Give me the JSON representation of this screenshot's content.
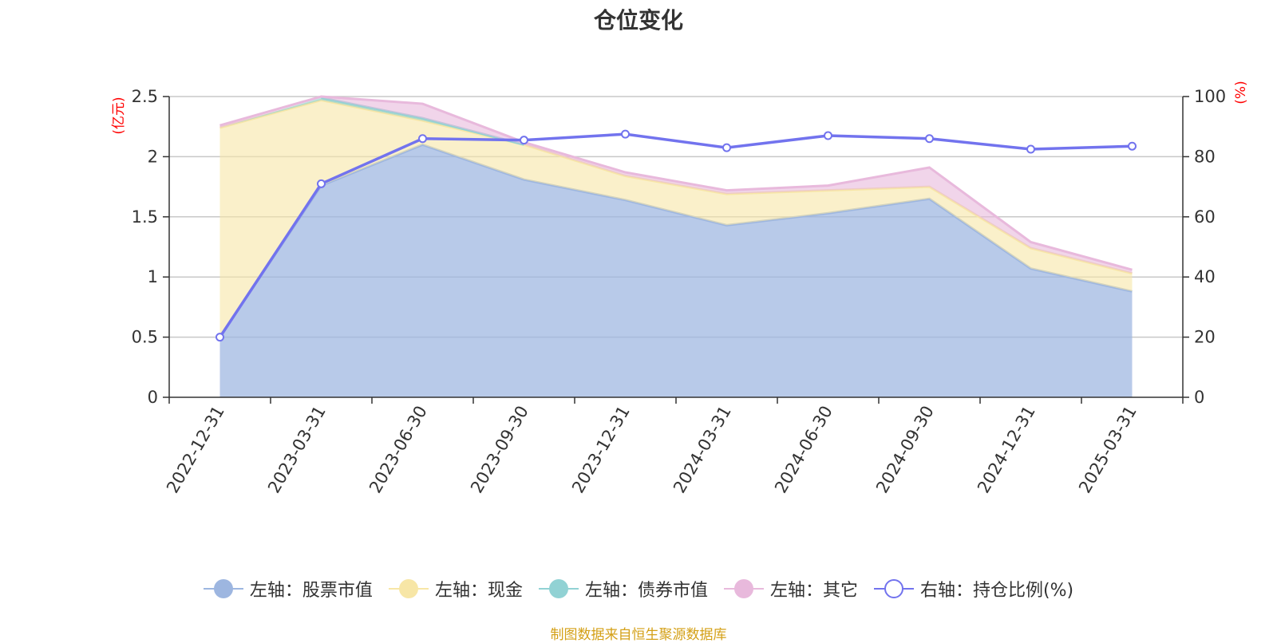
{
  "chart_data": {
    "type": "area",
    "title": "仓位变化",
    "categories": [
      "2022-12-31",
      "2023-03-31",
      "2023-06-30",
      "2023-09-30",
      "2023-12-31",
      "2024-03-31",
      "2024-06-30",
      "2024-09-30",
      "2024-12-31",
      "2025-03-31"
    ],
    "left_axis": {
      "unit": "(亿元)",
      "ylim": [
        0,
        2.5
      ],
      "ticks": [
        "0",
        "0.5",
        "1",
        "1.5",
        "2",
        "2.5"
      ]
    },
    "right_axis": {
      "unit": "(%)",
      "ylim": [
        0,
        100
      ],
      "ticks": [
        "0",
        "20",
        "40",
        "60",
        "80",
        "100"
      ]
    },
    "grid": true,
    "legend_position": "bottom",
    "series": [
      {
        "name": "左轴：股票市值",
        "axis": "left",
        "stacked": true,
        "color": "#9db6e0",
        "values": [
          0.5,
          1.76,
          2.1,
          1.81,
          1.64,
          1.43,
          1.53,
          1.65,
          1.07,
          0.88
        ]
      },
      {
        "name": "左轴：现金",
        "axis": "left",
        "stacked": true,
        "color": "#f7e6a6",
        "values": [
          1.74,
          0.71,
          0.2,
          0.29,
          0.2,
          0.26,
          0.19,
          0.1,
          0.17,
          0.15
        ]
      },
      {
        "name": "左轴：债券市值",
        "axis": "left",
        "stacked": true,
        "color": "#91d2d4",
        "values": [
          0,
          0.02,
          0.02,
          0,
          0,
          0,
          0,
          0,
          0,
          0
        ]
      },
      {
        "name": "左轴：其它",
        "axis": "left",
        "stacked": true,
        "color": "#e8b9dc",
        "values": [
          0.02,
          0.01,
          0.12,
          0.02,
          0.03,
          0.03,
          0.04,
          0.16,
          0.05,
          0.03
        ]
      },
      {
        "name": "右轴：持仓比例(%)",
        "axis": "right",
        "type": "line",
        "color": "#7273ee",
        "values": [
          20.0,
          71.0,
          86.0,
          85.5,
          87.5,
          83.0,
          87.0,
          86.0,
          82.5,
          83.5
        ]
      }
    ]
  },
  "legend": {
    "items": [
      "左轴：股票市值",
      "左轴：现金",
      "左轴：债券市值",
      "左轴：其它",
      "右轴：持仓比例(%)"
    ]
  },
  "source_text": "制图数据来自恒生聚源数据库"
}
